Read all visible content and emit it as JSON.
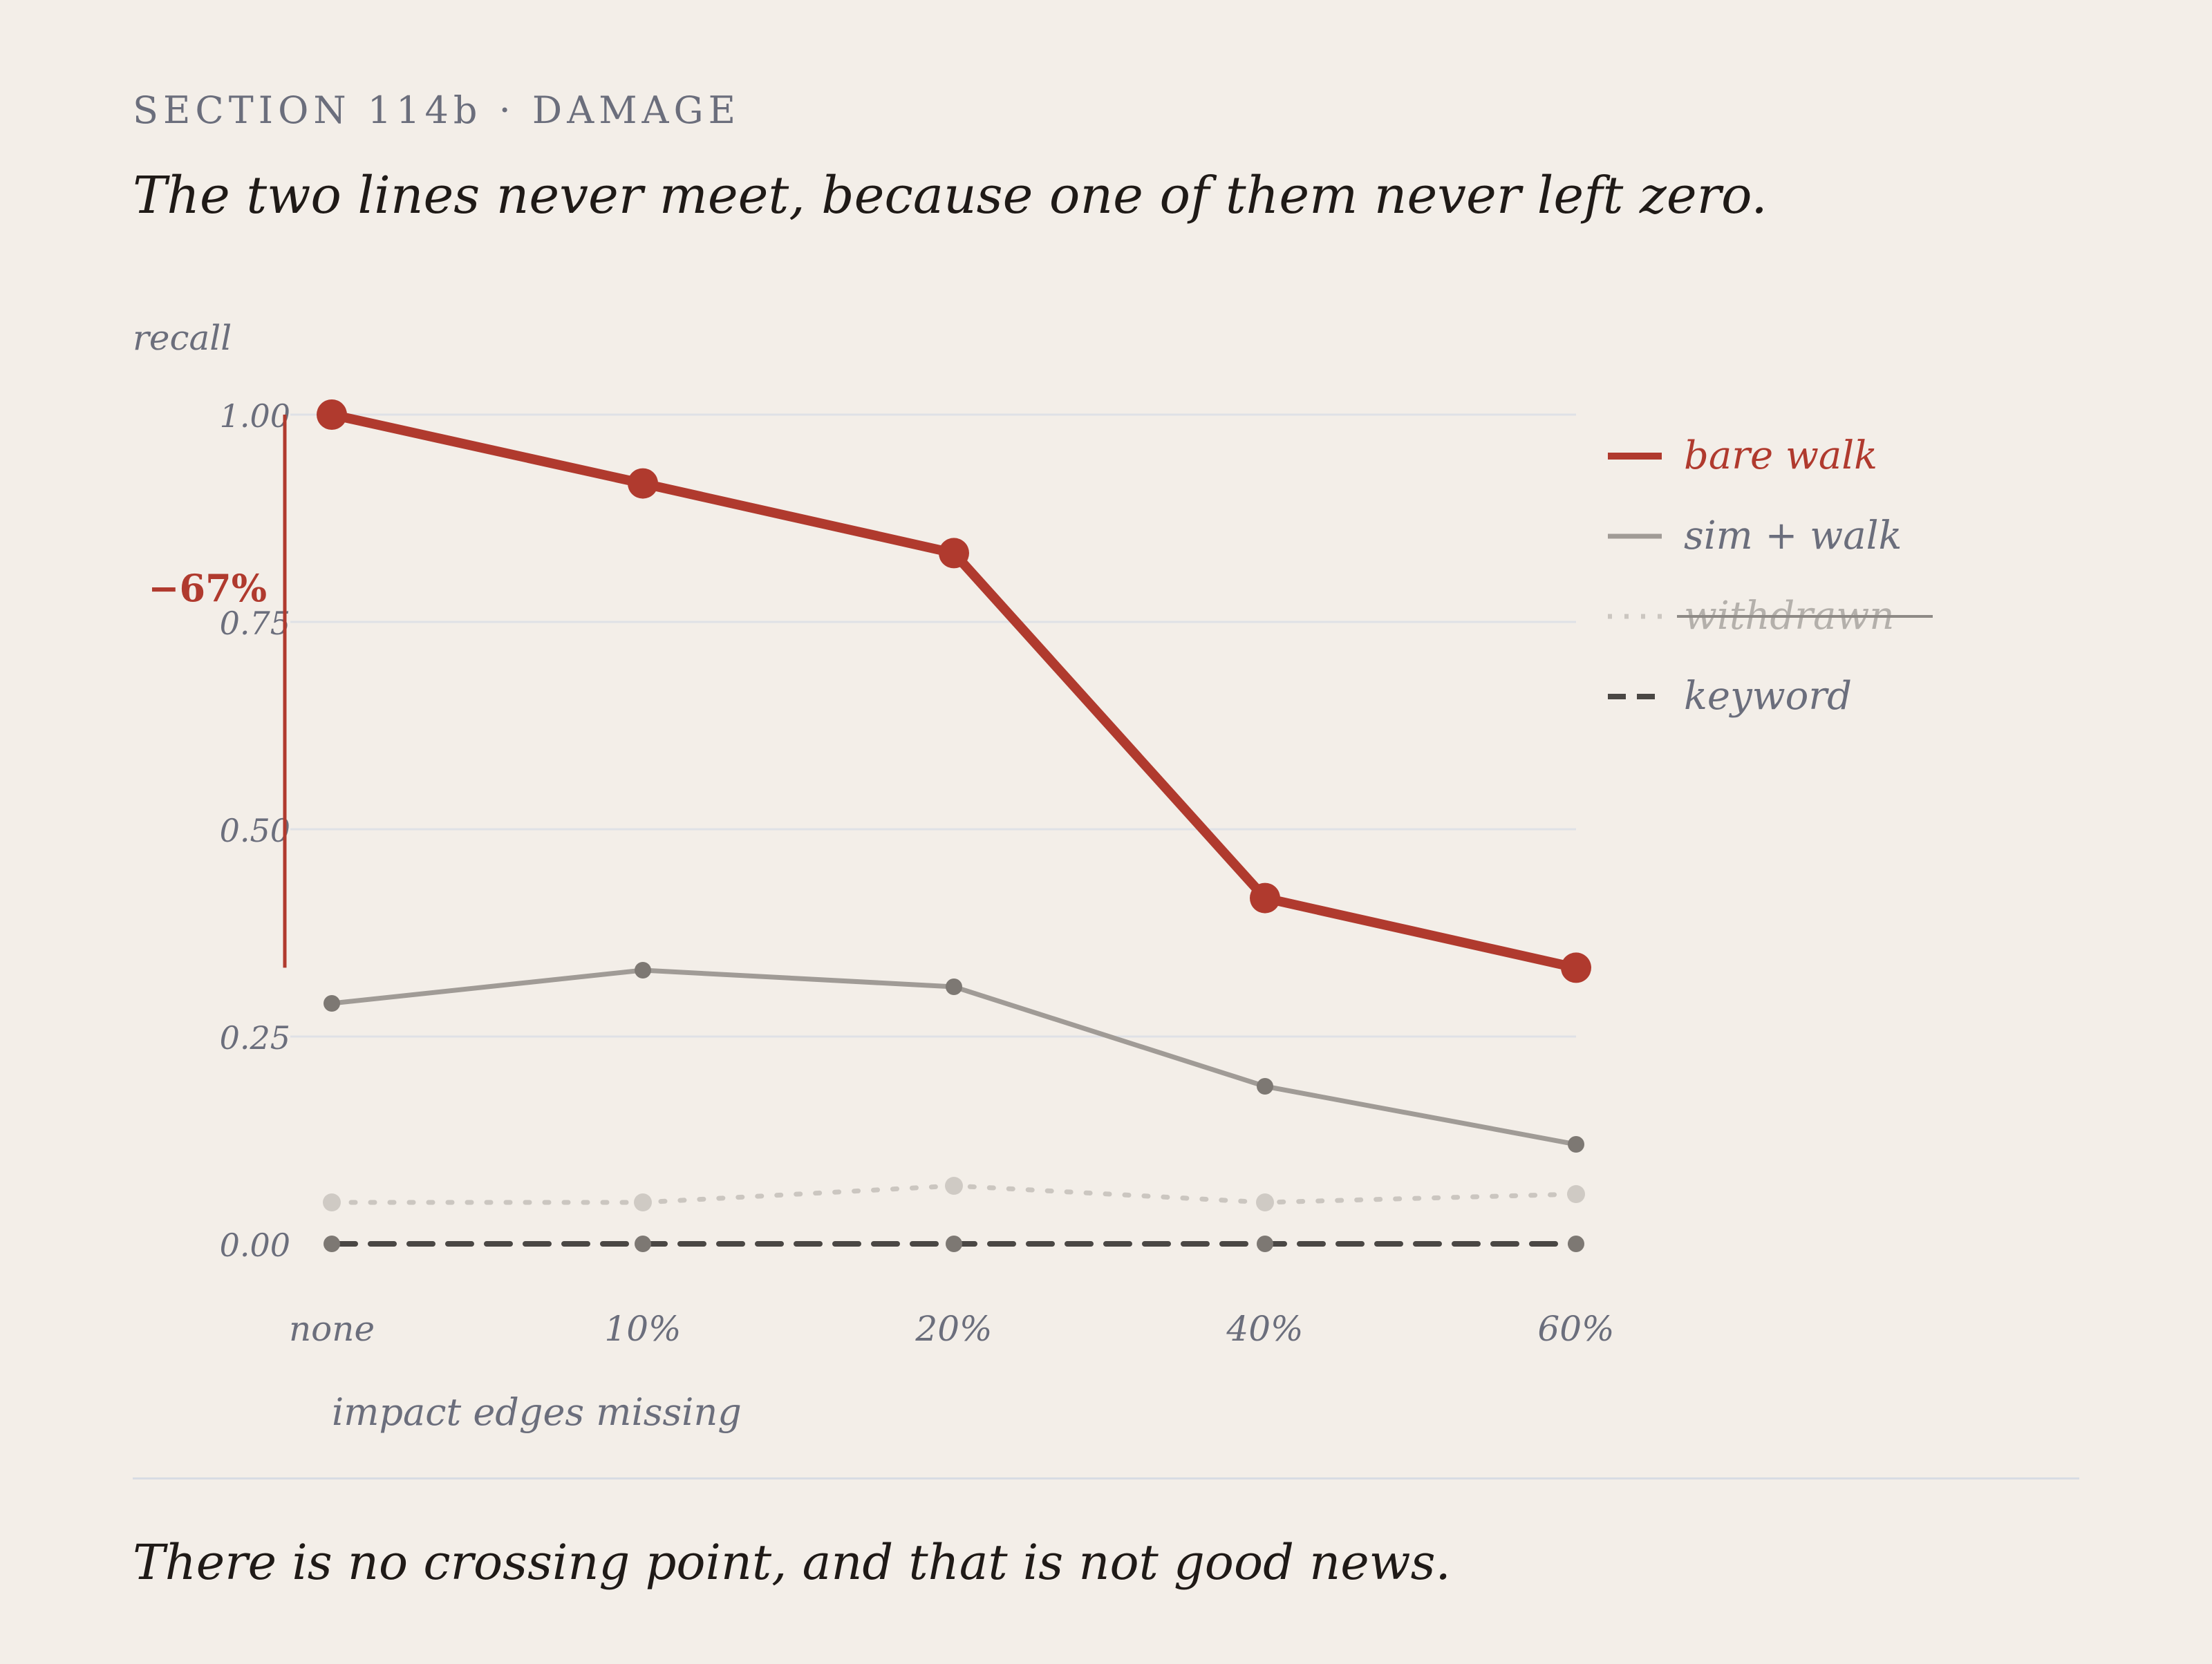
{
  "header": {
    "kicker": "SECTION 114b · DAMAGE",
    "headline": "The two lines never meet, because one of them never left zero."
  },
  "footer": {
    "note": "There is no crossing point, and that is not good news."
  },
  "annotation": {
    "drop_label": "−67%",
    "color": "#b03a2e"
  },
  "chart_data": {
    "type": "line",
    "categories": [
      "none",
      "10%",
      "20%",
      "40%",
      "60%"
    ],
    "ylabel": "recall",
    "xlabel": "impact edges missing",
    "ylim": [
      0,
      1
    ],
    "yticks": [
      "0.00",
      "0.25",
      "0.50",
      "0.75",
      "1.00"
    ],
    "grid": true,
    "legend_position": "right",
    "series": [
      {
        "name": "bare walk",
        "values": [
          1.0,
          0.917,
          0.833,
          0.417,
          0.333
        ],
        "color": "#b03a2e",
        "style": "solid-bold"
      },
      {
        "name": "sim + walk",
        "values": [
          0.29,
          0.33,
          0.31,
          0.19,
          0.12
        ],
        "color": "#a09b96",
        "style": "solid"
      },
      {
        "name": "withdrawn",
        "values": [
          0.05,
          0.05,
          0.07,
          0.05,
          0.06
        ],
        "color": "#cbc6c0",
        "style": "dotted",
        "struck": true
      },
      {
        "name": "keyword",
        "values": [
          0.0,
          0.0,
          0.0,
          0.0,
          0.0
        ],
        "color": "#4a4744",
        "style": "dashed"
      }
    ]
  }
}
